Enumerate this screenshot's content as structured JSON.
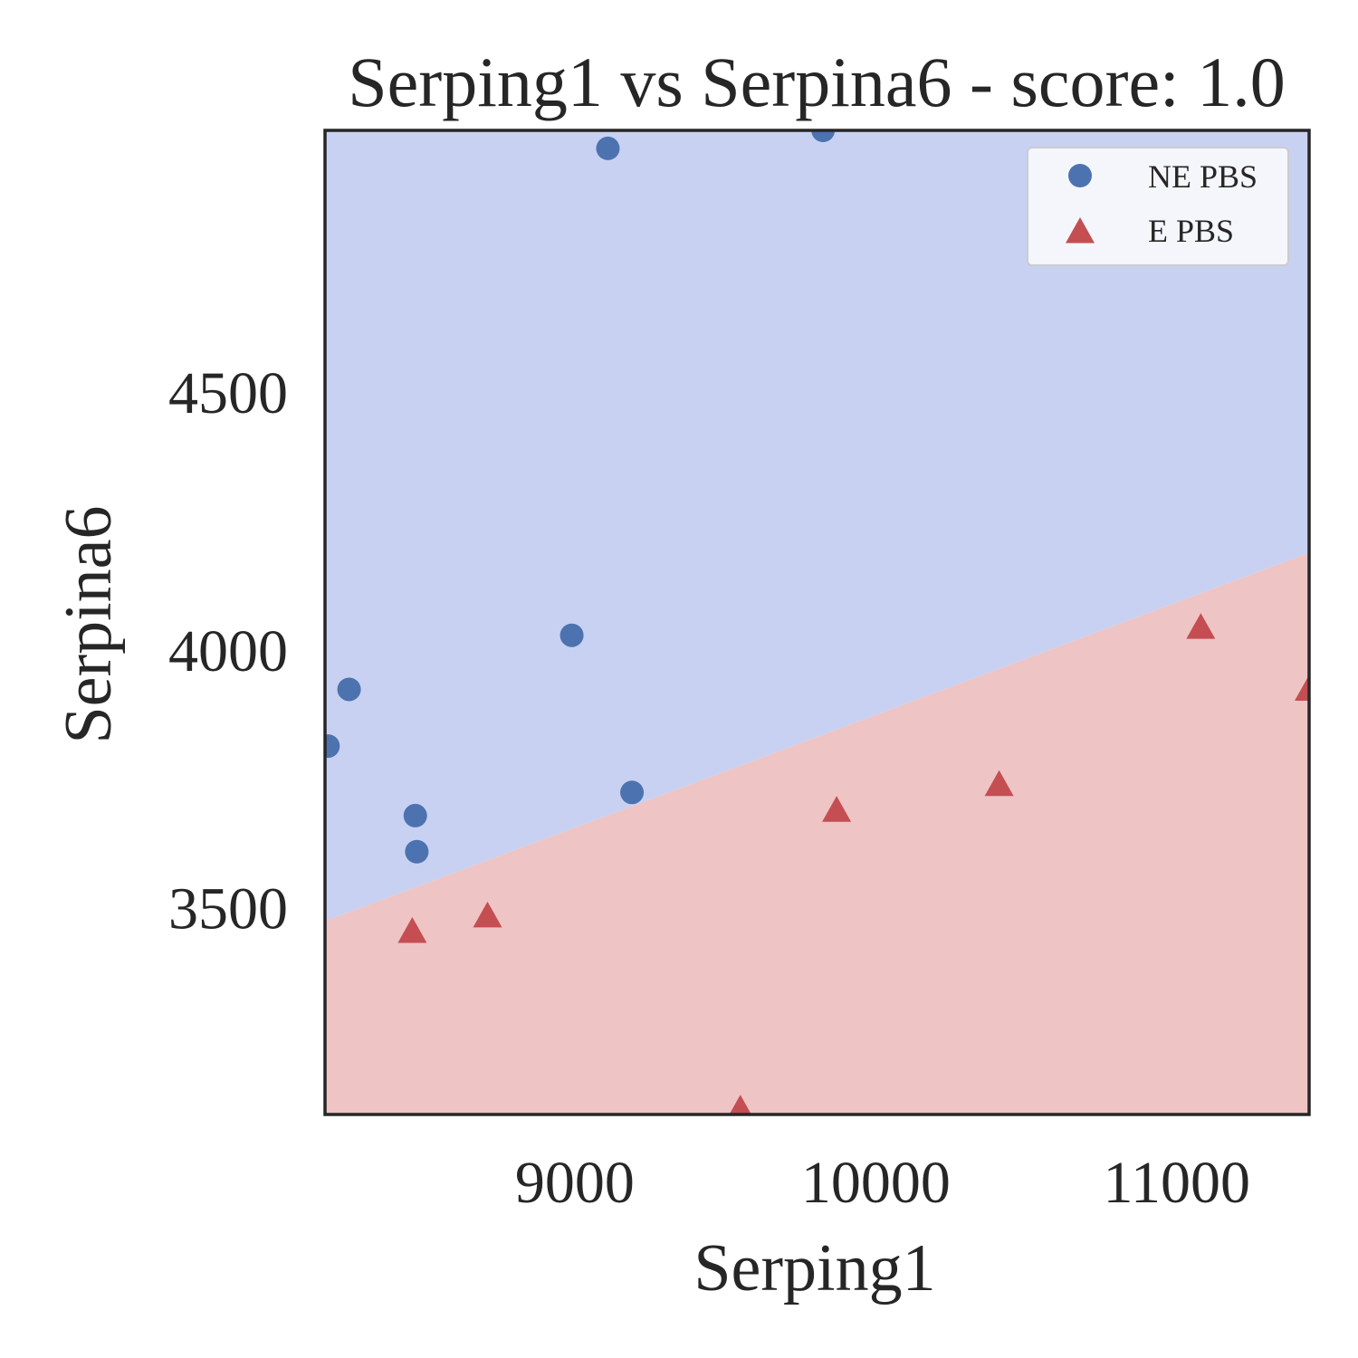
{
  "chart_data": {
    "type": "scatter",
    "title": "Serping1 vs Serpina6 - score: 1.0",
    "xlabel": "Serping1",
    "ylabel": "Serpina6",
    "xlim": [
      8170,
      11440
    ],
    "ylim": [
      3100,
      5010
    ],
    "xticks": [
      9000,
      10000,
      11000
    ],
    "yticks": [
      3500,
      4000,
      4500
    ],
    "grid": false,
    "legend_position": "top-right",
    "decision_boundary": {
      "points": [
        [
          8170,
          3475
        ],
        [
          11440,
          4190
        ]
      ],
      "above_class": "NE PBS",
      "below_class": "E PBS",
      "above_color": "#c8d1f1",
      "below_color": "#eec4c4"
    },
    "series": [
      {
        "name": "NE PBS",
        "marker": "circle",
        "color": "#4c72b0",
        "points": [
          [
            9110,
            4975
          ],
          [
            9825,
            5010
          ],
          [
            8990,
            4030
          ],
          [
            8250,
            3925
          ],
          [
            8180,
            3815
          ],
          [
            8470,
            3680
          ],
          [
            8475,
            3610
          ],
          [
            9190,
            3725
          ]
        ]
      },
      {
        "name": "E PBS",
        "marker": "triangle",
        "color": "#c44e52",
        "points": [
          [
            8460,
            3455
          ],
          [
            8710,
            3485
          ],
          [
            9550,
            3110
          ],
          [
            9870,
            3690
          ],
          [
            10410,
            3740
          ],
          [
            11080,
            4045
          ],
          [
            11440,
            3925
          ]
        ]
      }
    ]
  }
}
